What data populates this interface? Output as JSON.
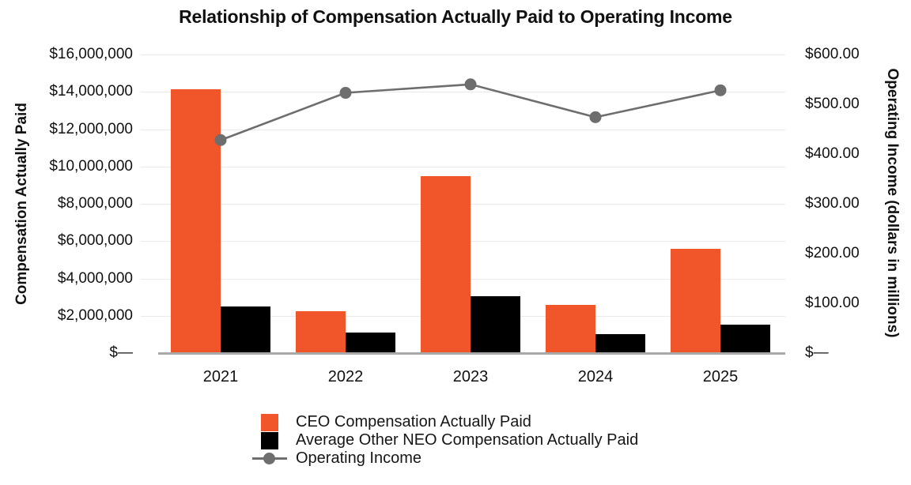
{
  "title": "Relationship of Compensation Actually Paid to Operating Income",
  "colors": {
    "ceo_bar": "#F1552A",
    "neo_bar": "#000000",
    "line": "#6E6E6E",
    "gridline": "#E9E9E9",
    "axis_baseline": "#A9A9A9",
    "text": "#111111"
  },
  "left_axis": {
    "title": "Compensation Actually Paid",
    "ticks": [
      "$16,000,000",
      "$14,000,000",
      "$12,000,000",
      "$10,000,000",
      "$8,000,000",
      "$6,000,000",
      "$4,000,000",
      "$2,000,000",
      "$—"
    ],
    "min": 0,
    "max": 16000000
  },
  "right_axis": {
    "title": "Operating Income (dollars in millions)",
    "ticks": [
      "$600.00",
      "$500.00",
      "$400.00",
      "$300.00",
      "$200.00",
      "$100.00",
      "$—"
    ],
    "min": 0,
    "max": 600
  },
  "legend": [
    {
      "label": "CEO Compensation Actually Paid",
      "symbol": "square",
      "color": "#F1552A"
    },
    {
      "label": "Average Other NEO Compensation Actually Paid",
      "symbol": "square",
      "color": "#000000"
    },
    {
      "label": "Operating Income",
      "symbol": "line-marker",
      "color": "#6E6E6E"
    }
  ],
  "chart_data": {
    "type": "bar",
    "subtype": "grouped-bar-with-line-overlay",
    "title": "Relationship of Compensation Actually Paid to Operating Income",
    "categories": [
      "2021",
      "2022",
      "2023",
      "2024",
      "2025"
    ],
    "series": [
      {
        "name": "CEO Compensation Actually Paid",
        "type": "bar",
        "axis": "left",
        "color": "#F1552A",
        "values": [
          14150000,
          2250000,
          9500000,
          2600000,
          5600000
        ]
      },
      {
        "name": "Average Other NEO Compensation Actually Paid",
        "type": "bar",
        "axis": "left",
        "color": "#000000",
        "values": [
          2480000,
          1100000,
          3060000,
          1000000,
          1530000
        ]
      },
      {
        "name": "Operating Income",
        "type": "line",
        "axis": "right",
        "color": "#6E6E6E",
        "values": [
          428,
          523,
          540,
          474,
          528
        ]
      }
    ],
    "left_ylabel": "Compensation Actually Paid",
    "right_ylabel": "Operating Income (dollars in millions)",
    "xlabel": "",
    "left_ylim": [
      0,
      16000000
    ],
    "right_ylim": [
      0,
      600
    ],
    "grid": true,
    "legend_position": "bottom"
  }
}
